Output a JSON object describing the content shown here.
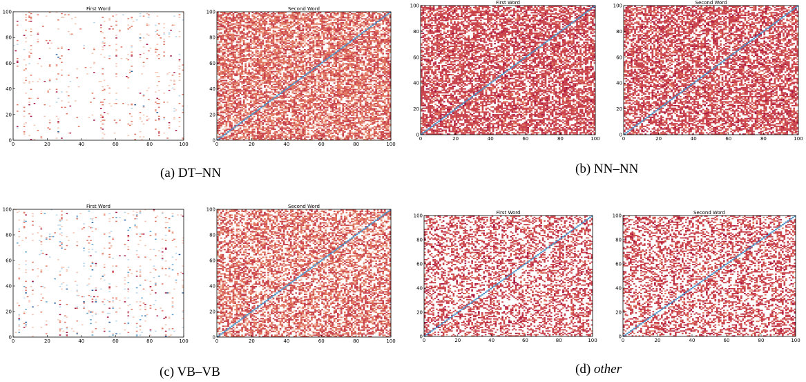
{
  "figure": {
    "colors": {
      "positive_light": "#f4c4b2",
      "positive_mid": "#e07560",
      "positive_dark": "#c8414b",
      "positive_deep": "#a8123e",
      "negative_light": "#b7d6ea",
      "negative_mid": "#5fa2d0",
      "negative_dark": "#215a9b",
      "diagonal": "#4d97cc"
    },
    "groups": [
      {
        "id": "a",
        "caption_prefix": "(a) ",
        "caption_main": "DT–NN",
        "italic": false,
        "panels": [
          {
            "title": "First Word",
            "kind": "sparse",
            "density": 0.035,
            "diag": false,
            "style": "orange"
          },
          {
            "title": "Second Word",
            "kind": "dense",
            "density": 0.68,
            "diag": true,
            "style": "salmon"
          }
        ]
      },
      {
        "id": "b",
        "caption_prefix": "(b) ",
        "caption_main": "NN–NN",
        "italic": false,
        "panels": [
          {
            "title": "First Word",
            "kind": "dense",
            "density": 0.62,
            "diag": true,
            "style": "crimson"
          },
          {
            "title": "Second Word",
            "kind": "dense",
            "density": 0.6,
            "diag": true,
            "style": "crimson"
          }
        ]
      },
      {
        "id": "c",
        "caption_prefix": "(c) ",
        "caption_main": "VB–VB",
        "italic": false,
        "panels": [
          {
            "title": "First Word",
            "kind": "sparse",
            "density": 0.05,
            "diag": false,
            "style": "mixed"
          },
          {
            "title": "Second Word",
            "kind": "dense",
            "density": 0.55,
            "diag": true,
            "style": "salmon"
          }
        ]
      },
      {
        "id": "d",
        "caption_prefix": "(d) ",
        "caption_main": "other",
        "italic": true,
        "panels": [
          {
            "title": "First Word",
            "kind": "dense",
            "density": 0.4,
            "diag": true,
            "style": "crimson"
          },
          {
            "title": "Second Word",
            "kind": "dense",
            "density": 0.4,
            "diag": true,
            "style": "crimson"
          }
        ]
      }
    ]
  },
  "chart_data": {
    "type": "heatmap",
    "xlim": [
      0,
      100
    ],
    "ylim": [
      0,
      100
    ],
    "xticks": [
      "0",
      "20",
      "40",
      "60",
      "80",
      "100"
    ],
    "yticks": [
      "0",
      "20",
      "40",
      "60",
      "80",
      "100"
    ],
    "panels": 8,
    "grid": false
  }
}
